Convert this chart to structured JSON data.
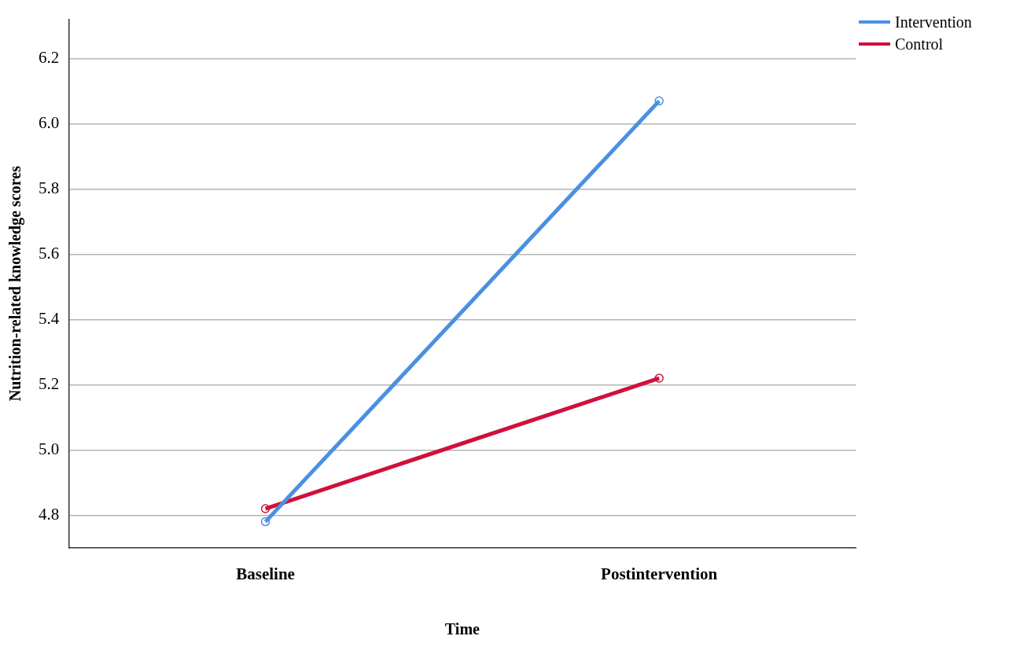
{
  "chart_data": {
    "type": "line",
    "xlabel": "Time",
    "ylabel": "Nutrition-related knowledge scores",
    "categories": [
      "Baseline",
      "Postintervention"
    ],
    "series": [
      {
        "name": "Intervention",
        "color": "#4a90e2",
        "values": [
          4.78,
          6.07
        ]
      },
      {
        "name": "Control",
        "color": "#d0103a",
        "values": [
          4.82,
          5.22
        ]
      }
    ],
    "ylim": [
      4.7,
      6.32
    ],
    "yticks": [
      4.8,
      {
        "value": 5,
        "label": "5.0"
      },
      5.2,
      5.4,
      5.6,
      5.8,
      {
        "value": 6,
        "label": "6.0"
      },
      6.2
    ],
    "grid": "y",
    "legend": "top right",
    "marker": "circle",
    "line_style": "solid"
  }
}
